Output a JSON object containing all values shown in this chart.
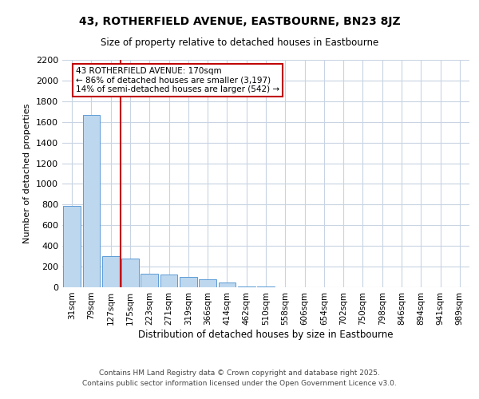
{
  "title": "43, ROTHERFIELD AVENUE, EASTBOURNE, BN23 8JZ",
  "subtitle": "Size of property relative to detached houses in Eastbourne",
  "xlabel": "Distribution of detached houses by size in Eastbourne",
  "ylabel": "Number of detached properties",
  "categories": [
    "31sqm",
    "79sqm",
    "127sqm",
    "175sqm",
    "223sqm",
    "271sqm",
    "319sqm",
    "366sqm",
    "414sqm",
    "462sqm",
    "510sqm",
    "558sqm",
    "606sqm",
    "654sqm",
    "702sqm",
    "750sqm",
    "798sqm",
    "846sqm",
    "894sqm",
    "941sqm",
    "989sqm"
  ],
  "values": [
    790,
    1670,
    300,
    275,
    135,
    120,
    100,
    80,
    50,
    10,
    5,
    0,
    0,
    0,
    0,
    0,
    0,
    0,
    0,
    0,
    0
  ],
  "bar_color": "#bdd7ee",
  "bar_edge_color": "#5b9bd5",
  "vline_x": 2.5,
  "vline_color": "#c00000",
  "annotation_text": "43 ROTHERFIELD AVENUE: 170sqm\n← 86% of detached houses are smaller (3,197)\n14% of semi-detached houses are larger (542) →",
  "annotation_box_color": "#ffffff",
  "annotation_box_edge": "#c00000",
  "ylim": [
    0,
    2200
  ],
  "yticks": [
    0,
    200,
    400,
    600,
    800,
    1000,
    1200,
    1400,
    1600,
    1800,
    2000,
    2200
  ],
  "bg_color": "#ffffff",
  "grid_color": "#c8d4e3",
  "footer1": "Contains HM Land Registry data © Crown copyright and database right 2025.",
  "footer2": "Contains public sector information licensed under the Open Government Licence v3.0."
}
